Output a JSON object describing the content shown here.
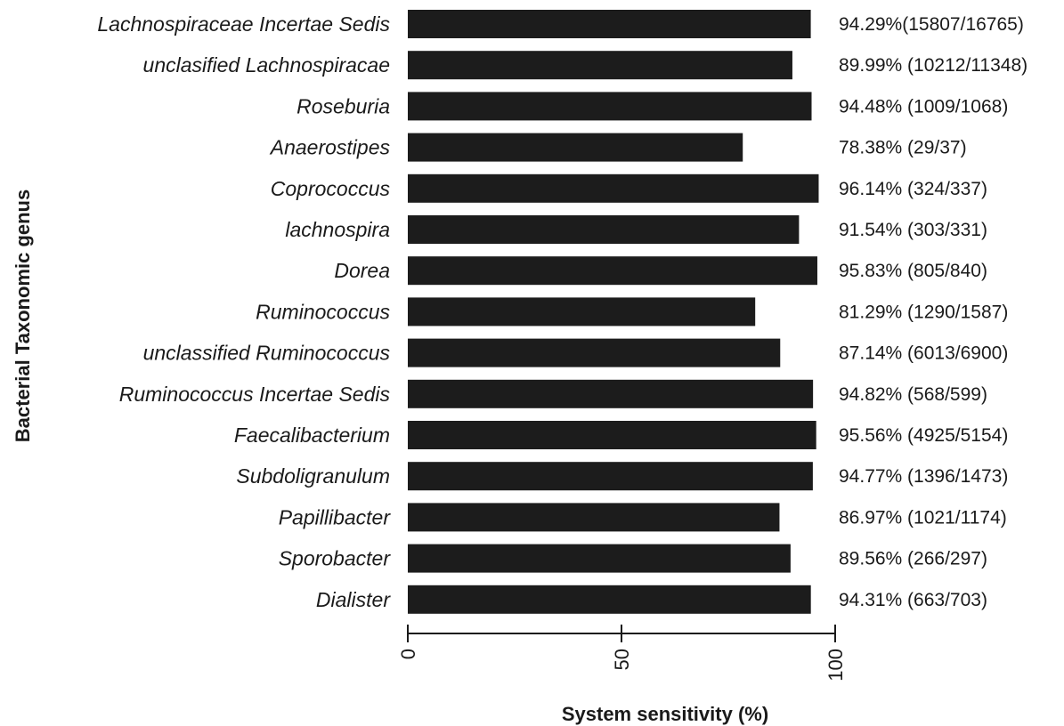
{
  "chart_data": {
    "type": "bar",
    "orientation": "horizontal",
    "title": "",
    "xlabel": "System sensitivity (%)",
    "ylabel": "Bacterial Taxonomic genus",
    "xlim": [
      0,
      100
    ],
    "xticks": [
      "0",
      "50",
      "100"
    ],
    "grid": false,
    "categories": [
      "Lachnospiraceae Incertae Sedis",
      "unclasified Lachnospiracae",
      "Roseburia",
      "Anaerostipes",
      "Coprococcus",
      "lachnospira",
      "Dorea",
      "Ruminococcus",
      "unclassified Ruminococcus",
      "Ruminococcus Incertae Sedis",
      "Faecalibacterium",
      "Subdoligranulum",
      "Papillibacter",
      "Sporobacter",
      "Dialister"
    ],
    "values": [
      94.29,
      89.99,
      94.48,
      78.38,
      96.14,
      91.54,
      95.83,
      81.29,
      87.14,
      94.82,
      95.56,
      94.77,
      86.97,
      89.56,
      94.31
    ],
    "data_labels": [
      "94.29%(15807/16765)",
      "89.99% (10212/11348)",
      "94.48% (1009/1068)",
      "78.38% (29/37)",
      "96.14% (324/337)",
      "91.54% (303/331)",
      "95.83% (805/840)",
      "81.29% (1290/1587)",
      "87.14% (6013/6900)",
      "94.82% (568/599)",
      "95.56% (4925/5154)",
      "94.77% (1396/1473)",
      "86.97% (1021/1174)",
      "89.56% (266/297)",
      "94.31% (663/703)"
    ],
    "bar_color": "#1c1c1c"
  }
}
